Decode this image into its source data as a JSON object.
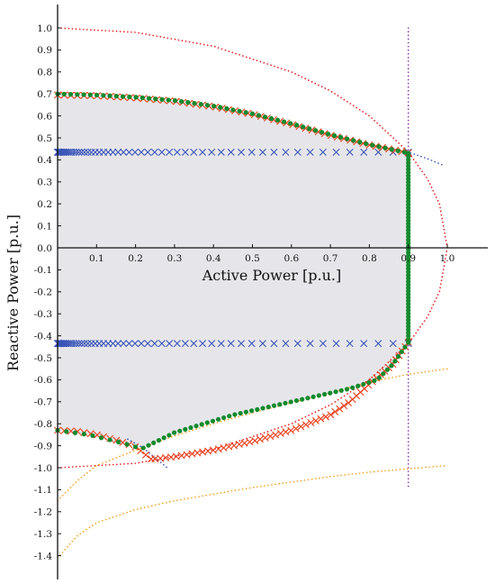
{
  "chart_data": {
    "type": "scatter",
    "xlabel": "Active Power [p.u.]",
    "ylabel": "Reactive Power [p.u.]",
    "xlim": [
      0,
      1.1
    ],
    "ylim": [
      -1.5,
      1.1
    ],
    "grid": false,
    "x_ticks": [
      "0.1",
      "0.2",
      "0.3",
      "0.4",
      "0.5",
      "0.6",
      "0.7",
      "0.8",
      "0.9",
      "1.0"
    ],
    "y_ticks": [
      "1.0",
      "0.9",
      "0.8",
      "0.7",
      "0.6",
      "0.5",
      "0.4",
      "0.3",
      "0.2",
      "0.1",
      "0.0",
      "-0.1",
      "-0.2",
      "-0.3",
      "-0.4",
      "-0.5",
      "-0.6",
      "-0.7",
      "-0.8",
      "-0.9",
      "-1.0",
      "-1.1",
      "-1.2",
      "-1.3",
      "-1.4"
    ],
    "colors": {
      "region": "#e6e6ea",
      "green": "#138a2e",
      "red": "#e8401a",
      "blue": "#3a55b8",
      "red_dotted": "#e51a1a",
      "orange_dotted": "#f0a020",
      "purple_dotted": "#8b2fa8",
      "blue_dotted": "#3a55b8"
    },
    "series": [
      {
        "kind": "feasible-region",
        "points": [
          [
            0,
            0.7
          ],
          [
            0.1,
            0.695
          ],
          [
            0.2,
            0.685
          ],
          [
            0.3,
            0.67
          ],
          [
            0.4,
            0.645
          ],
          [
            0.5,
            0.61
          ],
          [
            0.6,
            0.565
          ],
          [
            0.7,
            0.515
          ],
          [
            0.8,
            0.47
          ],
          [
            0.89,
            0.435
          ],
          [
            0.9,
            0.43
          ],
          [
            0.9,
            -0.43
          ],
          [
            0.86,
            -0.53
          ],
          [
            0.82,
            -0.6
          ],
          [
            0.75,
            -0.64
          ],
          [
            0.6,
            -0.7
          ],
          [
            0.45,
            -0.76
          ],
          [
            0.3,
            -0.84
          ],
          [
            0.22,
            -0.91
          ],
          [
            0.15,
            -0.89
          ],
          [
            0.08,
            -0.85
          ],
          [
            0,
            -0.83
          ]
        ]
      },
      {
        "kind": "circle-dotted",
        "color": "red_dotted",
        "points": [
          [
            0,
            1.0
          ],
          [
            0.2,
            0.98
          ],
          [
            0.4,
            0.917
          ],
          [
            0.6,
            0.8
          ],
          [
            0.7,
            0.714
          ],
          [
            0.8,
            0.6
          ],
          [
            0.9,
            0.436
          ],
          [
            0.95,
            0.312
          ],
          [
            0.98,
            0.199
          ],
          [
            1.0,
            0
          ],
          [
            0.98,
            -0.199
          ],
          [
            0.95,
            -0.312
          ],
          [
            0.9,
            -0.436
          ],
          [
            0.8,
            -0.6
          ],
          [
            0.7,
            -0.714
          ],
          [
            0.6,
            -0.8
          ],
          [
            0.4,
            -0.917
          ],
          [
            0.2,
            -0.98
          ],
          [
            0,
            -1.0
          ]
        ]
      },
      {
        "kind": "vertical-dotted",
        "color": "purple_dotted",
        "x": 0.9,
        "y_range": [
          1.0,
          -1.1
        ]
      },
      {
        "kind": "dotted",
        "color": "blue_dotted",
        "points": [
          [
            0.85,
            0.45
          ],
          [
            0.9,
            0.435
          ],
          [
            0.95,
            0.405
          ],
          [
            0.99,
            0.375
          ]
        ]
      },
      {
        "kind": "dotted",
        "color": "blue_dotted",
        "points": [
          [
            0.18,
            -0.87
          ],
          [
            0.22,
            -0.91
          ],
          [
            0.26,
            -0.97
          ],
          [
            0.285,
            -1.005
          ]
        ]
      },
      {
        "kind": "dotted",
        "color": "orange_dotted",
        "points": [
          [
            0,
            -1.15
          ],
          [
            0.05,
            -1.06
          ],
          [
            0.1,
            -0.99
          ],
          [
            0.2,
            -0.92
          ],
          [
            0.3,
            -0.855
          ],
          [
            0.4,
            -0.8
          ],
          [
            0.5,
            -0.75
          ],
          [
            0.6,
            -0.705
          ],
          [
            0.7,
            -0.66
          ],
          [
            0.8,
            -0.61
          ],
          [
            0.9,
            -0.575
          ],
          [
            1.0,
            -0.55
          ]
        ]
      },
      {
        "kind": "dotted",
        "color": "orange_dotted",
        "points": [
          [
            0,
            -1.41
          ],
          [
            0.05,
            -1.31
          ],
          [
            0.1,
            -1.25
          ],
          [
            0.2,
            -1.19
          ],
          [
            0.3,
            -1.15
          ],
          [
            0.4,
            -1.12
          ],
          [
            0.5,
            -1.09
          ],
          [
            0.6,
            -1.065
          ],
          [
            0.7,
            -1.04
          ],
          [
            0.8,
            -1.02
          ],
          [
            0.9,
            -1.005
          ],
          [
            1.0,
            -0.99
          ]
        ]
      },
      {
        "kind": "cross",
        "color": "blue",
        "y": 0.435,
        "x_from": 0,
        "x_to": 0.9,
        "count": 60
      },
      {
        "kind": "cross",
        "color": "blue",
        "y": -0.435,
        "x_from": 0,
        "x_to": 0.9,
        "count": 60
      },
      {
        "kind": "cross",
        "color": "red",
        "points": [
          [
            0,
            0.695
          ],
          [
            0.1,
            0.692
          ],
          [
            0.2,
            0.682
          ],
          [
            0.3,
            0.667
          ],
          [
            0.4,
            0.642
          ],
          [
            0.5,
            0.608
          ],
          [
            0.6,
            0.562
          ],
          [
            0.7,
            0.512
          ],
          [
            0.8,
            0.468
          ],
          [
            0.9,
            0.432
          ]
        ],
        "count": 55
      },
      {
        "kind": "cross",
        "color": "red",
        "points": [
          [
            0.9,
            -0.43
          ],
          [
            0.86,
            -0.53
          ],
          [
            0.8,
            -0.62
          ],
          [
            0.75,
            -0.7
          ],
          [
            0.7,
            -0.76
          ],
          [
            0.6,
            -0.83
          ],
          [
            0.5,
            -0.88
          ],
          [
            0.4,
            -0.92
          ],
          [
            0.3,
            -0.95
          ],
          [
            0.25,
            -0.96
          ]
        ],
        "count": 55
      },
      {
        "kind": "cross",
        "color": "red",
        "points": [
          [
            0,
            -0.83
          ],
          [
            0.05,
            -0.835
          ],
          [
            0.1,
            -0.85
          ],
          [
            0.15,
            -0.875
          ],
          [
            0.2,
            -0.905
          ],
          [
            0.24,
            -0.96
          ]
        ],
        "count": 16
      },
      {
        "kind": "dot",
        "color": "green",
        "points": [
          [
            0,
            0.7
          ],
          [
            0.1,
            0.695
          ],
          [
            0.2,
            0.685
          ],
          [
            0.3,
            0.67
          ],
          [
            0.4,
            0.645
          ],
          [
            0.5,
            0.61
          ],
          [
            0.6,
            0.565
          ],
          [
            0.7,
            0.515
          ],
          [
            0.8,
            0.47
          ],
          [
            0.89,
            0.435
          ]
        ],
        "count": 55
      },
      {
        "kind": "dot",
        "color": "green",
        "points": [
          [
            0.9,
            0.43
          ],
          [
            0.9,
            -0.43
          ]
        ],
        "count": 60
      },
      {
        "kind": "dot",
        "color": "green",
        "points": [
          [
            0.9,
            -0.43
          ],
          [
            0.86,
            -0.53
          ],
          [
            0.82,
            -0.6
          ],
          [
            0.75,
            -0.64
          ],
          [
            0.6,
            -0.7
          ],
          [
            0.45,
            -0.76
          ],
          [
            0.3,
            -0.84
          ],
          [
            0.22,
            -0.91
          ]
        ],
        "count": 52
      },
      {
        "kind": "dot",
        "color": "green",
        "points": [
          [
            0,
            -0.83
          ],
          [
            0.08,
            -0.85
          ],
          [
            0.15,
            -0.88
          ],
          [
            0.2,
            -0.905
          ]
        ],
        "count": 10
      }
    ]
  }
}
